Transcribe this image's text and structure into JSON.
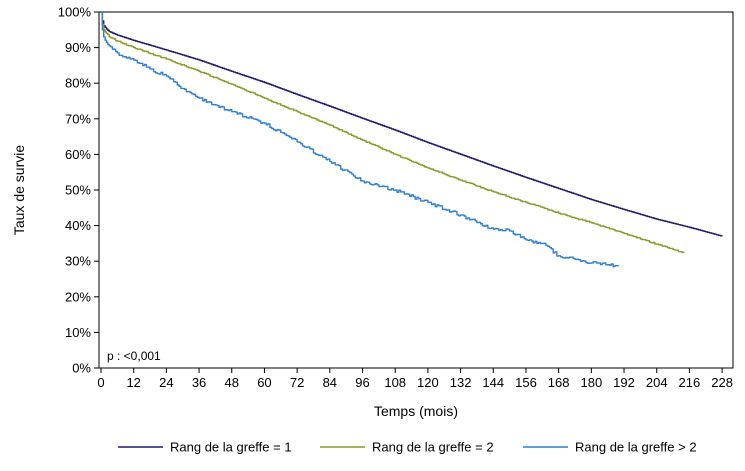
{
  "chart_data": {
    "type": "line",
    "title": "",
    "xlabel": "Temps (mois)",
    "ylabel": "Taux de survie",
    "annotation": "p : <0,001",
    "xlim": [
      0,
      232
    ],
    "ylim": [
      0,
      100
    ],
    "x_ticks": [
      0,
      12,
      24,
      36,
      48,
      60,
      72,
      84,
      96,
      108,
      120,
      132,
      144,
      156,
      168,
      180,
      192,
      204,
      216,
      228
    ],
    "x_tick_labels": [
      "0",
      "12",
      "24",
      "36",
      "48",
      "60",
      "72",
      "84",
      "96",
      "108",
      "120",
      "132",
      "144",
      "156",
      "168",
      "180",
      "192",
      "204",
      "216",
      "228"
    ],
    "y_ticks": [
      0,
      10,
      20,
      30,
      40,
      50,
      60,
      70,
      80,
      90,
      100
    ],
    "y_tick_labels": [
      "0%",
      "10%",
      "20%",
      "30%",
      "40%",
      "50%",
      "60%",
      "70%",
      "80%",
      "90%",
      "100%"
    ],
    "grid": false,
    "legend_position": "bottom",
    "series": [
      {
        "name": "Rang de la greffe = 1",
        "color": "#1f1a6e",
        "x": [
          0,
          0.5,
          1,
          2,
          3,
          6,
          12,
          24,
          36,
          48,
          60,
          72,
          84,
          96,
          108,
          120,
          132,
          144,
          156,
          168,
          180,
          192,
          204,
          216,
          228
        ],
        "y": [
          100,
          97.5,
          96.2,
          95.2,
          94.5,
          93.5,
          92.0,
          89.3,
          86.5,
          83.3,
          80.2,
          76.8,
          73.5,
          70.1,
          66.8,
          63.3,
          60.0,
          56.7,
          53.5,
          50.4,
          47.3,
          44.5,
          41.8,
          39.5,
          37.0
        ]
      },
      {
        "name": "Rang de la greffe = 2",
        "color": "#8c9a2a",
        "x": [
          0,
          0.5,
          1,
          2,
          3,
          6,
          12,
          24,
          36,
          48,
          60,
          72,
          84,
          96,
          108,
          120,
          132,
          144,
          156,
          168,
          180,
          192,
          204,
          214
        ],
        "y": [
          100,
          96.5,
          95.0,
          94.0,
          93.0,
          91.8,
          90.0,
          86.8,
          83.3,
          79.7,
          75.8,
          72.0,
          68.2,
          64.0,
          60.0,
          56.2,
          52.8,
          49.5,
          46.5,
          43.5,
          40.8,
          37.8,
          34.8,
          32.3
        ]
      },
      {
        "name": "Rang de la greffe > 2",
        "color": "#2f7fd4",
        "x": [
          0,
          0.5,
          1,
          2,
          3,
          6,
          12,
          18,
          24,
          30,
          36,
          48,
          60,
          72,
          84,
          96,
          108,
          120,
          132,
          144,
          150,
          156,
          162,
          168,
          174,
          180,
          186,
          190
        ],
        "y": [
          100,
          95.0,
          93.0,
          91.5,
          90.5,
          88.5,
          86.5,
          84.0,
          82.0,
          78.5,
          75.8,
          72.0,
          68.8,
          63.5,
          58.0,
          52.5,
          50.0,
          46.5,
          43.0,
          39.0,
          38.5,
          36.0,
          35.0,
          31.5,
          30.5,
          29.5,
          29.0,
          28.8
        ]
      }
    ]
  }
}
